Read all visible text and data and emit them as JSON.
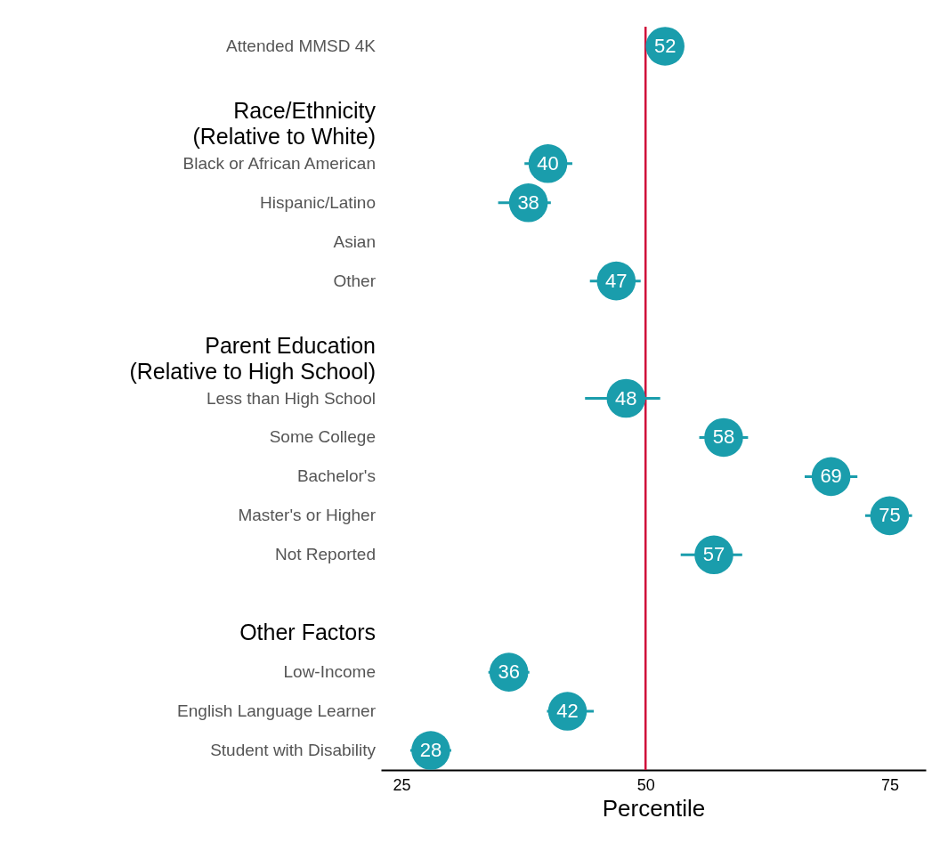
{
  "chart_data": {
    "type": "scatter",
    "orientation": "horizontal",
    "xlabel": "Percentile",
    "categories": [
      "Attended MMSD 4K",
      null,
      "Race/Ethnicity\n(Relative to White)",
      "Black or African American",
      "Hispanic/Latino",
      "Asian",
      "Other",
      null,
      "Parent Education\n(Relative to High School)",
      "Less than High School",
      "Some College",
      "Bachelor's",
      "Master's or Higher",
      "Not Reported",
      null,
      "Other Factors",
      "Low-Income",
      "English Language Learner",
      "Student with Disability"
    ],
    "values": [
      52,
      null,
      null,
      40,
      38,
      null,
      47,
      null,
      null,
      48,
      58,
      69,
      75,
      57,
      null,
      null,
      36,
      42,
      28
    ],
    "errors": [
      null,
      null,
      null,
      [
        37.6,
        42.5
      ],
      [
        34.9,
        40.3
      ],
      null,
      [
        44.3,
        49.5
      ],
      null,
      null,
      [
        43.8,
        51.5
      ],
      [
        55.5,
        60.5
      ],
      [
        66.3,
        71.7
      ],
      [
        72.5,
        77.3
      ],
      [
        53.6,
        59.9
      ],
      null,
      null,
      [
        33.9,
        38.1
      ],
      [
        39.9,
        44.7
      ],
      [
        25.9,
        30.1
      ]
    ],
    "color": "#1a9dac",
    "data_labels": true,
    "marker": "circle",
    "xlim": [
      22.9,
      78.7
    ],
    "xticks": [
      25,
      50,
      75
    ],
    "grid": false,
    "ref_lines": [
      {
        "axis": "x",
        "value": 50,
        "color": "#d0103a"
      }
    ]
  }
}
